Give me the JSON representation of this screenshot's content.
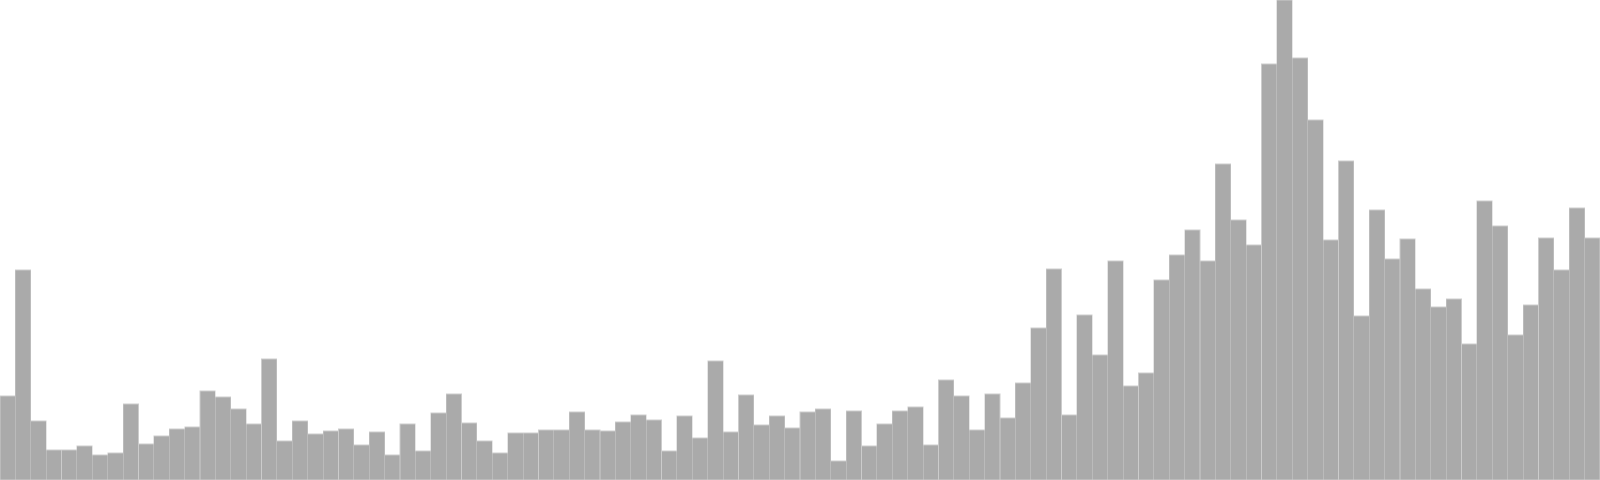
{
  "chart_data": {
    "type": "bar",
    "title": "",
    "xlabel": "",
    "ylabel": "",
    "grid": false,
    "legend": "none",
    "bar_color": "#aaaaaa",
    "ylim": [
      0,
      480
    ],
    "values": [
      84,
      210,
      59,
      30,
      30,
      34,
      25,
      27,
      76,
      36,
      44,
      51,
      53,
      89,
      83,
      71,
      56,
      121,
      39,
      59,
      46,
      49,
      51,
      35,
      48,
      25,
      56,
      29,
      67,
      86,
      57,
      39,
      27,
      47,
      47,
      50,
      50,
      68,
      50,
      49,
      58,
      65,
      60,
      29,
      64,
      42,
      119,
      48,
      85,
      55,
      64,
      52,
      68,
      71,
      19,
      69,
      34,
      56,
      69,
      73,
      35,
      100,
      84,
      50,
      86,
      62,
      97,
      152,
      211,
      65,
      165,
      125,
      219,
      94,
      107,
      200,
      225,
      250,
      219,
      316,
      260,
      235,
      416,
      480,
      422,
      360,
      240,
      319,
      164,
      270,
      221,
      241,
      191,
      173,
      181,
      136,
      279,
      254,
      145,
      175,
      242,
      210,
      272,
      242
    ]
  }
}
